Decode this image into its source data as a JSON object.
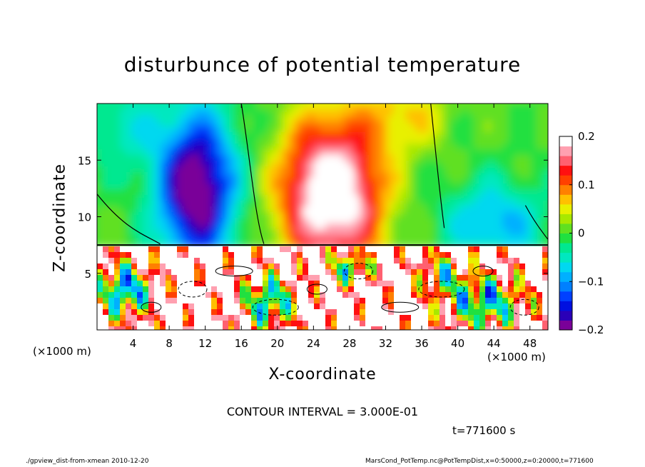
{
  "page": {
    "title": "disturbunce of potential temperature",
    "contour_interval_text": "CONTOUR INTERVAL = 3.000E-01",
    "time_text": "t=771600 s",
    "footer_left": "./gpview_dist-from-xmean  2010-12-20",
    "footer_right": "MarsCond_PotTemp.nc@PotTempDist,x=0:50000,z=0:20000,t=771600",
    "x_unit_left": "(×1000 m)",
    "x_unit_right": "(×1000 m)"
  },
  "chart_data": {
    "type": "heatmap",
    "title": "disturbunce of potential temperature",
    "xlabel": "X-coordinate",
    "ylabel": "Z-coordinate",
    "xlim": [
      0,
      50
    ],
    "ylim": [
      0,
      20
    ],
    "x_unit": "(×1000 m)",
    "x_ticks": [
      4,
      8,
      12,
      16,
      20,
      24,
      28,
      32,
      36,
      40,
      44,
      48
    ],
    "x_tick_labels": [
      "4",
      "8",
      "12",
      "16",
      "20",
      "24",
      "28",
      "32",
      "36",
      "40",
      "44",
      "48"
    ],
    "y_ticks": [
      5,
      10,
      15
    ],
    "y_tick_labels": [
      "5",
      "10",
      "15"
    ],
    "colorbar": {
      "min": -0.2,
      "max": 0.2,
      "ticks": [
        0.2,
        0.1,
        0,
        -0.1,
        -0.2
      ],
      "tick_labels": [
        "0.2",
        "0.1",
        "0",
        "−0.1",
        "−0.2"
      ],
      "colors": [
        "#7a0099",
        "#2a00b8",
        "#0010e0",
        "#0040ff",
        "#0080ff",
        "#00b0ff",
        "#00d8f0",
        "#00e8c0",
        "#00e890",
        "#20e040",
        "#60e020",
        "#a8e800",
        "#e8f000",
        "#ffc000",
        "#ff8000",
        "#ff4000",
        "#ff1010",
        "#ff6070",
        "#ffa0b0",
        "#ffffff"
      ]
    },
    "contour_interval": 0.3,
    "time": "t=771600 s"
  }
}
